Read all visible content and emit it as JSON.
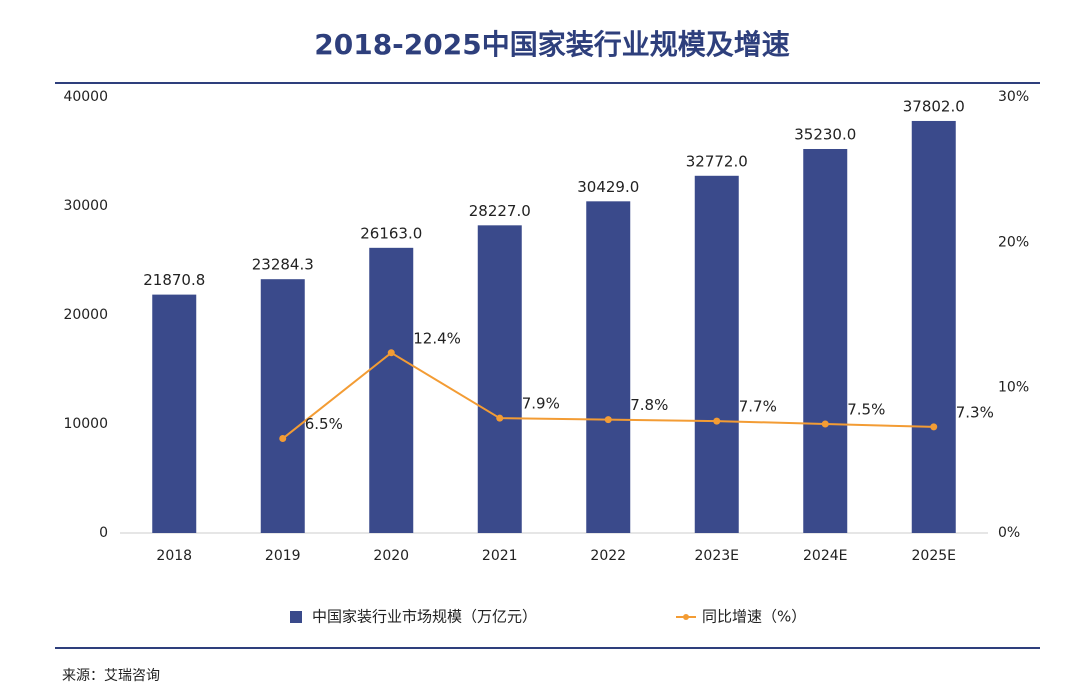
{
  "chart_data": {
    "type": "bar",
    "title": "2018-2025中国家装行业规模及增速",
    "source": "来源：艾瑞咨询",
    "categories": [
      "2018",
      "2019",
      "2020",
      "2021",
      "2022",
      "2023E",
      "2024E",
      "2025E"
    ],
    "series": [
      {
        "name": "中国家装行业市场规模（万亿元）",
        "type": "bar",
        "color": "#3a4a8b",
        "values": [
          21870.8,
          23284.3,
          26163.0,
          28227.0,
          30429.0,
          32772.0,
          35230.0,
          37802.0
        ],
        "value_labels": [
          "21870.8",
          "23284.3",
          "26163.0",
          "28227.0",
          "30429.0",
          "32772.0",
          "35230.0",
          "37802.0"
        ]
      },
      {
        "name": "同比增速（%）",
        "type": "line",
        "axis": "y2",
        "color": "#f39c34",
        "values": [
          null,
          6.5,
          12.4,
          7.9,
          7.8,
          7.7,
          7.5,
          7.3
        ],
        "value_labels": [
          null,
          "6.5%",
          "12.4%",
          "7.9%",
          "7.8%",
          "7.7%",
          "7.5%",
          "7.3%"
        ]
      }
    ],
    "ylim": [
      0,
      40000
    ],
    "yticks": [
      0,
      10000,
      20000,
      30000,
      40000
    ],
    "y2lim": [
      0,
      30
    ],
    "y2ticks": [
      {
        "value": 0,
        "label": "0%"
      },
      {
        "value": 10,
        "label": "10%"
      },
      {
        "value": 20,
        "label": "20%"
      },
      {
        "value": 30,
        "label": "30%"
      }
    ],
    "grid": false
  }
}
